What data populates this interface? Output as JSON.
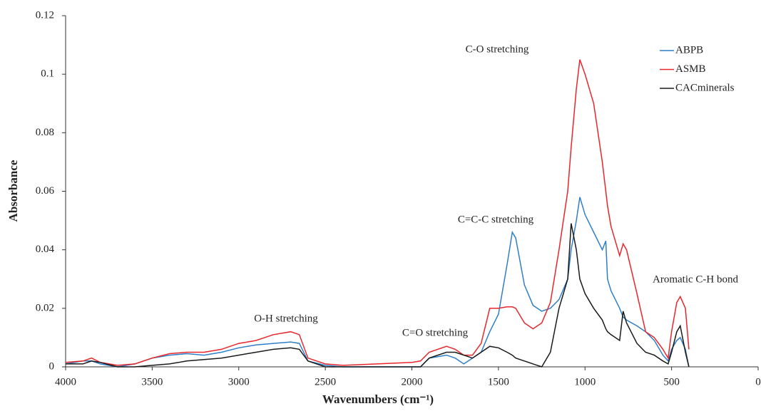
{
  "chart_data": {
    "type": "line",
    "x_label": "Wavenumbers (cm⁻¹)",
    "y_label": "Absorbance",
    "x": [
      4000,
      3900,
      3850,
      3800,
      3700,
      3600,
      3500,
      3400,
      3300,
      3200,
      3100,
      3000,
      2950,
      2900,
      2800,
      2700,
      2650,
      2600,
      2500,
      2400,
      2200,
      2000,
      1950,
      1900,
      1800,
      1750,
      1700,
      1650,
      1600,
      1550,
      1500,
      1450,
      1420,
      1400,
      1350,
      1300,
      1250,
      1200,
      1150,
      1100,
      1080,
      1050,
      1030,
      1000,
      950,
      900,
      880,
      870,
      850,
      800,
      780,
      760,
      700,
      650,
      600,
      550,
      520,
      500,
      470,
      450,
      420,
      400
    ],
    "series": [
      {
        "name": "ABPB",
        "color": "#2e7fc9",
        "values": [
          0.001,
          0.002,
          0.002,
          0.001,
          0,
          0.001,
          0.003,
          0.004,
          0.0045,
          0.004,
          0.005,
          0.0065,
          0.007,
          0.0075,
          0.008,
          0.0085,
          0.008,
          0.002,
          0.0005,
          0,
          0,
          0,
          0,
          0.003,
          0.004,
          0.003,
          0.001,
          0.003,
          0.005,
          0.012,
          0.018,
          0.035,
          0.046,
          0.044,
          0.028,
          0.021,
          0.019,
          0.02,
          0.023,
          0.03,
          0.04,
          0.05,
          0.058,
          0.052,
          0.046,
          0.04,
          0.043,
          0.03,
          0.026,
          0.02,
          0.017,
          0.016,
          0.014,
          0.012,
          0.009,
          0.004,
          0.002,
          0.006,
          0.009,
          0.01,
          0.006,
          0
        ]
      },
      {
        "name": "ASMB",
        "color": "#e8262b",
        "values": [
          0.0015,
          0.002,
          0.003,
          0.0015,
          0.0005,
          0.001,
          0.003,
          0.0045,
          0.005,
          0.005,
          0.006,
          0.008,
          0.0085,
          0.009,
          0.011,
          0.012,
          0.011,
          0.003,
          0.001,
          0.0005,
          0.001,
          0.0015,
          0.002,
          0.005,
          0.007,
          0.006,
          0.004,
          0.004,
          0.008,
          0.02,
          0.02,
          0.0205,
          0.0205,
          0.02,
          0.015,
          0.013,
          0.015,
          0.022,
          0.04,
          0.06,
          0.075,
          0.095,
          0.105,
          0.1,
          0.09,
          0.07,
          0.06,
          0.055,
          0.048,
          0.038,
          0.042,
          0.04,
          0.025,
          0.012,
          0.01,
          0.006,
          0.003,
          0.012,
          0.022,
          0.024,
          0.02,
          0.006
        ]
      },
      {
        "name": "CACminerals",
        "color": "#1a1a1a",
        "values": [
          0.001,
          0.001,
          0.002,
          0.0015,
          0,
          0,
          0.0005,
          0.001,
          0.002,
          0.0025,
          0.003,
          0.004,
          0.0045,
          0.005,
          0.006,
          0.0065,
          0.006,
          0.002,
          0,
          0,
          0,
          0,
          0,
          0.003,
          0.005,
          0.005,
          0.004,
          0.003,
          0.005,
          0.007,
          0.0065,
          0.005,
          0.004,
          0.003,
          0.002,
          0.001,
          0,
          0.005,
          0.02,
          0.03,
          0.049,
          0.04,
          0.03,
          0.025,
          0.02,
          0.016,
          0.013,
          0.012,
          0.011,
          0.009,
          0.019,
          0.015,
          0.008,
          0.005,
          0.004,
          0.002,
          0.001,
          0.005,
          0.012,
          0.014,
          0.005,
          0
        ]
      }
    ],
    "xlim": [
      4000,
      0
    ],
    "ylim": [
      0,
      0.12
    ],
    "xticks": [
      4000,
      3500,
      3000,
      2500,
      2000,
      1500,
      1000,
      500,
      0
    ],
    "yticks": [
      0,
      0.02,
      0.04,
      0.06,
      0.08,
      0.1,
      0.12
    ],
    "annotations": [
      "C-O stretching",
      "C=C-C stretching",
      "O-H stretching",
      "C=O stretching",
      "Aromatic C-H bond"
    ],
    "legend": "top-right"
  }
}
